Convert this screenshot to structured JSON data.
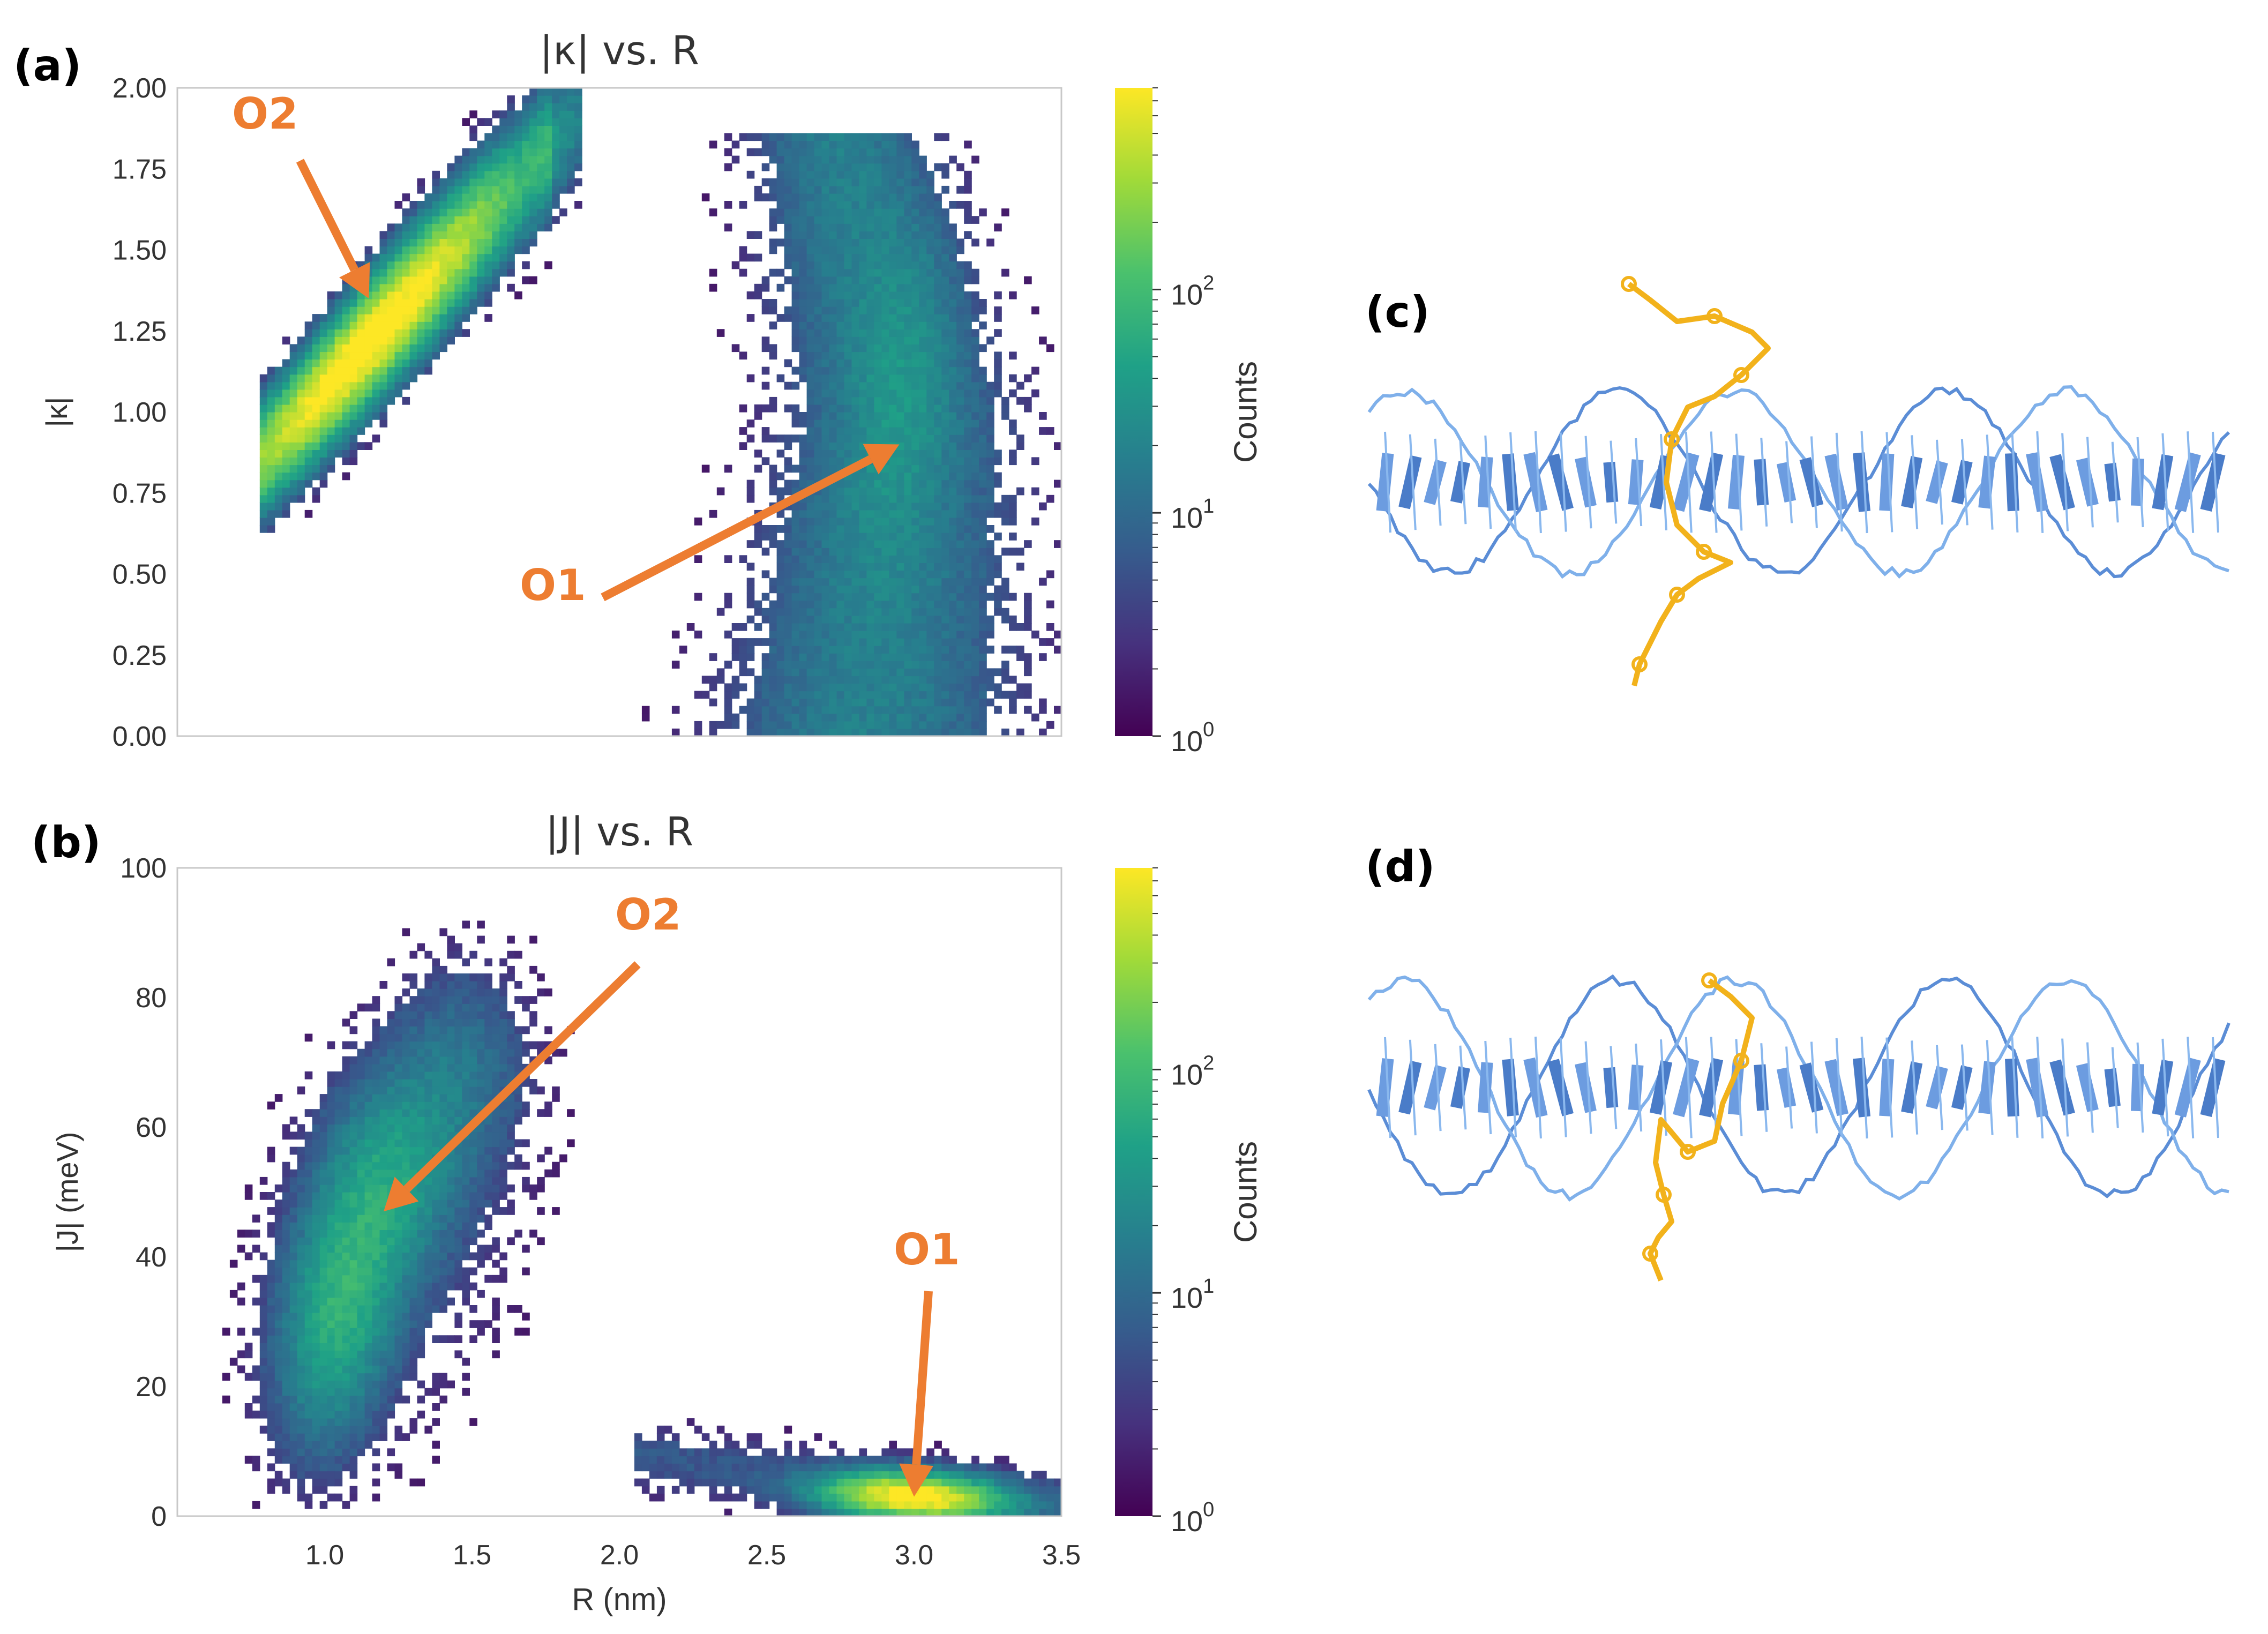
{
  "figure": {
    "panel_labels": {
      "a": "(a)",
      "b": "(b)",
      "c": "(c)",
      "d": "(d)"
    },
    "colorbar_label": "Counts",
    "colorbar_tick_base": "10",
    "colorbar_tick_exps": [
      "0",
      "1",
      "2"
    ],
    "colors": {
      "annotation": "#ED7D31",
      "dna": "#5B8DD6",
      "dye": "#F2B21B",
      "viridis": [
        "#440154",
        "#46327e",
        "#365c8d",
        "#277f8e",
        "#1fa187",
        "#4ac16d",
        "#a0da39",
        "#fde725"
      ]
    }
  },
  "chart_data": [
    {
      "id": "a",
      "type": "heatmap",
      "title": "|κ| vs. R",
      "xlabel": "",
      "ylabel": "|κ|",
      "xlim": [
        0.5,
        3.5
      ],
      "ylim": [
        0,
        2
      ],
      "x_ticks": [
        1.0,
        1.5,
        2.0,
        2.5,
        3.0,
        3.5
      ],
      "x_tick_labels": [],
      "y_ticks": [
        0,
        0.25,
        0.5,
        0.75,
        1.0,
        1.25,
        1.5,
        1.75,
        2.0
      ],
      "y_tick_labels": [
        "0.00",
        "0.25",
        "0.50",
        "0.75",
        "1.00",
        "1.25",
        "1.50",
        "1.75",
        "2.00"
      ],
      "colorbar": {
        "scale": "log",
        "range": [
          1,
          800
        ],
        "label": "Counts"
      },
      "density_clusters": [
        {
          "name": "O2 lobe",
          "x_range": [
            0.75,
            1.85
          ],
          "y_range": [
            0.7,
            1.93
          ],
          "peak": [
            1.15,
            1.3
          ],
          "peak_counts": 800
        },
        {
          "name": "O1 band",
          "x_range": [
            2.1,
            3.5
          ],
          "y_range": [
            0.0,
            1.85
          ],
          "peak": [
            2.95,
            1.05
          ],
          "peak_counts": 90
        }
      ],
      "annotations": [
        {
          "label": "O2",
          "target": [
            1.15,
            1.35
          ]
        },
        {
          "label": "O1",
          "target": [
            2.95,
            0.9
          ]
        }
      ]
    },
    {
      "id": "b",
      "type": "heatmap",
      "title": "|J| vs. R",
      "xlabel": "R (nm)",
      "ylabel": "|J| (meV)",
      "xlim": [
        0.5,
        3.5
      ],
      "ylim": [
        0,
        100
      ],
      "x_ticks": [
        1.0,
        1.5,
        2.0,
        2.5,
        3.0,
        3.5
      ],
      "x_tick_labels": [
        "1.0",
        "1.5",
        "2.0",
        "2.5",
        "3.0",
        "3.5"
      ],
      "y_ticks": [
        0,
        20,
        40,
        60,
        80,
        100
      ],
      "y_tick_labels": [
        "0",
        "20",
        "40",
        "60",
        "80",
        "100"
      ],
      "colorbar": {
        "scale": "log",
        "range": [
          1,
          800
        ],
        "label": "Counts"
      },
      "density_clusters": [
        {
          "name": "O2 blob",
          "x_range": [
            0.75,
            1.9
          ],
          "y_range": [
            3,
            88
          ],
          "peak": [
            1.05,
            33
          ],
          "peak_counts": 300
        },
        {
          "name": "O1 tail",
          "x_range": [
            2.1,
            3.5
          ],
          "y_range": [
            0,
            14
          ],
          "peak": [
            3.0,
            3
          ],
          "peak_counts": 800
        }
      ],
      "annotations": [
        {
          "label": "O2",
          "target": [
            1.2,
            47
          ]
        },
        {
          "label": "O1",
          "target": [
            3.0,
            3
          ]
        }
      ]
    }
  ]
}
